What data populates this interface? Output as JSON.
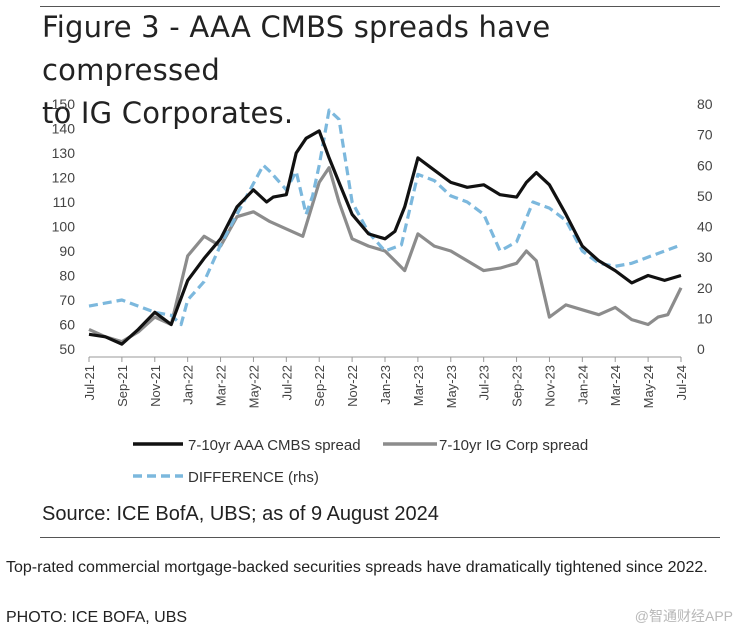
{
  "figure": {
    "title_line1": "Figure 3 - AAA CMBS spreads have compressed",
    "title_line2": "to IG Corporates.",
    "source": "Source: ICE BofA, UBS; as of 9 August 2024"
  },
  "caption": {
    "text": "Top-rated commercial mortgage-backed securities spreads have dramatically tightened since 2022.",
    "photo_credit": "PHOTO: ICE BOFA, UBS",
    "watermark": "@智通财经APP"
  },
  "chart_data": {
    "type": "line",
    "title": "Figure 3 - AAA CMBS spreads have compressed to IG Corporates.",
    "x_tick_labels": [
      "Jul-21",
      "Sep-21",
      "Nov-21",
      "Jan-22",
      "Mar-22",
      "May-22",
      "Jul-22",
      "Sep-22",
      "Nov-22",
      "Jan-23",
      "Mar-23",
      "May-23",
      "Jul-23",
      "Sep-23",
      "Nov-23",
      "Jan-24",
      "Mar-24",
      "May-24",
      "Jul-24"
    ],
    "y_left": {
      "min": 50,
      "max": 150,
      "ticks": [
        50,
        60,
        70,
        80,
        90,
        100,
        110,
        120,
        130,
        140,
        150
      ]
    },
    "y_right": {
      "min": 0,
      "max": 80,
      "ticks": [
        0,
        10,
        20,
        30,
        40,
        50,
        60,
        70,
        80
      ]
    },
    "legend": {
      "position": "bottom-left"
    },
    "colors": {
      "cmbs": "#111111",
      "igcorp": "#8c8c8c",
      "difference": "#7cb8dd"
    },
    "series": [
      {
        "name": "7-10yr AAA CMBS spread",
        "axis": "left",
        "style": "solid",
        "x": [
          0,
          0.5,
          1,
          1.5,
          2,
          2.5,
          3,
          3.5,
          4,
          4.5,
          5,
          5.4,
          5.6,
          6,
          6.3,
          6.6,
          7,
          7.3,
          7.6,
          8,
          8.5,
          9,
          9.3,
          9.6,
          10,
          10.4,
          10.8,
          11,
          11.5,
          12,
          12.5,
          13,
          13.3,
          13.6,
          14,
          14.5,
          15,
          15.5,
          16,
          16.5,
          17,
          17.5,
          18
        ],
        "values": [
          56,
          55,
          52,
          58,
          65,
          60,
          78,
          87,
          95,
          108,
          115,
          110,
          112,
          113,
          130,
          136,
          139,
          128,
          118,
          105,
          97,
          95,
          98,
          108,
          128,
          124,
          120,
          118,
          116,
          117,
          113,
          112,
          118,
          122,
          117,
          105,
          92,
          86,
          82,
          77,
          80,
          78,
          80
        ]
      },
      {
        "name": "7-10yr IG Corp spread",
        "axis": "left",
        "style": "solid",
        "x": [
          0,
          0.5,
          1,
          1.5,
          2,
          2.5,
          3,
          3.5,
          4,
          4.5,
          5,
          5.5,
          6,
          6.5,
          7,
          7.3,
          7.6,
          8,
          8.5,
          9,
          9.3,
          9.6,
          10,
          10.5,
          11,
          11.5,
          12,
          12.5,
          13,
          13.3,
          13.6,
          14,
          14.5,
          15,
          15.5,
          16,
          16.5,
          17,
          17.3,
          17.6,
          18
        ],
        "values": [
          58,
          55,
          53,
          57,
          63,
          60,
          88,
          96,
          92,
          104,
          106,
          102,
          99,
          96,
          118,
          124,
          110,
          95,
          92,
          90,
          86,
          82,
          97,
          92,
          90,
          86,
          82,
          83,
          85,
          90,
          86,
          63,
          68,
          66,
          64,
          67,
          62,
          60,
          63,
          64,
          75
        ]
      },
      {
        "name": "DIFFERENCE (rhs)",
        "axis": "right",
        "style": "dashed",
        "x": [
          0,
          0.5,
          1,
          1.5,
          2,
          2.5,
          2.8,
          3,
          3.5,
          4,
          4.5,
          5,
          5.3,
          5.5,
          6,
          6.3,
          6.6,
          6.8,
          7,
          7.3,
          7.6,
          8,
          8.5,
          9,
          9.5,
          10,
          10.5,
          11,
          11.5,
          12,
          12.5,
          13,
          13.5,
          14,
          14.5,
          15,
          15.5,
          16,
          16.5,
          17,
          17.5,
          18
        ],
        "values": [
          14,
          15,
          16,
          14,
          12,
          11,
          8,
          16,
          22,
          34,
          44,
          54,
          60,
          58,
          52,
          58,
          44,
          50,
          60,
          78,
          75,
          48,
          38,
          32,
          34,
          57,
          55,
          50,
          48,
          44,
          32,
          35,
          48,
          46,
          42,
          32,
          28,
          27,
          28,
          30,
          32,
          34
        ]
      }
    ]
  }
}
